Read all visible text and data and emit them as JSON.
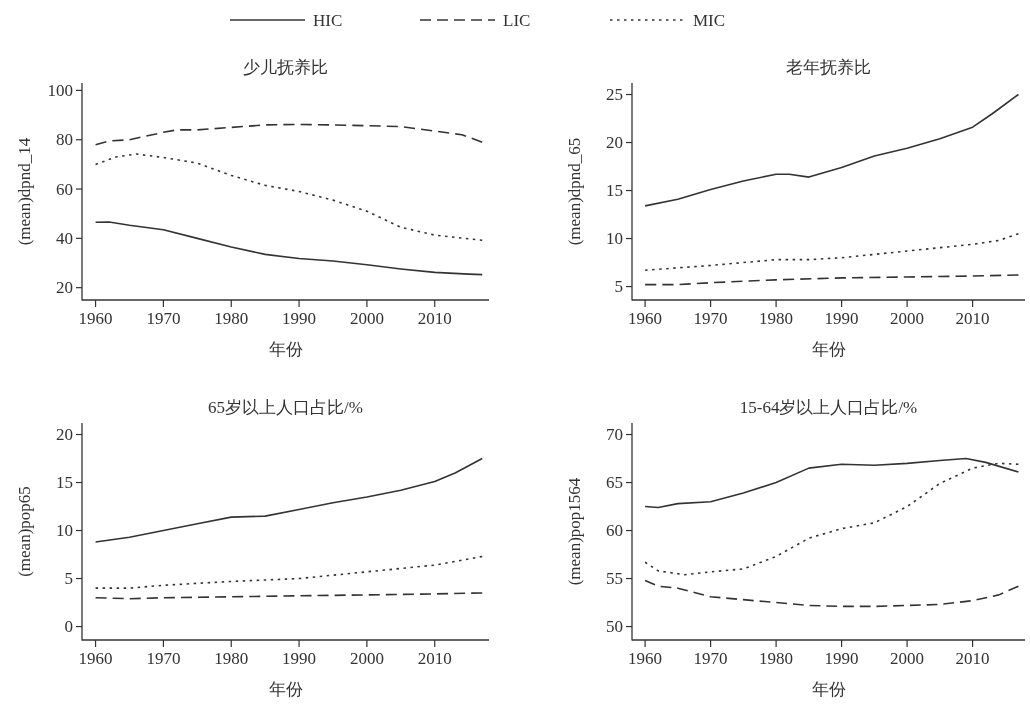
{
  "chart_data": [
    {
      "type": "line",
      "title": "少儿抚养比",
      "xlabel": "年份",
      "ylabel": "(mean)dpnd_14",
      "xlim": [
        1958,
        2018
      ],
      "xticks": [
        1960,
        1970,
        1980,
        1990,
        2000,
        2010
      ],
      "ylim": [
        15,
        103
      ],
      "yticks": [
        20,
        40,
        60,
        80,
        100
      ],
      "grid": false,
      "legend": "top",
      "series": [
        {
          "name": "HIC",
          "color": "#333333",
          "line_style": "solid",
          "x": [
            1960,
            1962,
            1965,
            1970,
            1975,
            1980,
            1985,
            1990,
            1995,
            2000,
            2005,
            2010,
            2015,
            2017
          ],
          "values": [
            46.5,
            46.6,
            45.3,
            43.5,
            40,
            36.5,
            33.5,
            31.8,
            30.8,
            29.3,
            27.6,
            26.2,
            25.5,
            25.3
          ]
        },
        {
          "name": "LIC",
          "color": "#333333",
          "line_style": "dashed",
          "x": [
            1960,
            1962,
            1965,
            1970,
            1972,
            1975,
            1980,
            1985,
            1990,
            1995,
            2000,
            2005,
            2010,
            2014,
            2017
          ],
          "values": [
            78,
            79.5,
            80,
            83,
            84,
            84,
            85,
            86,
            86.2,
            86,
            85.7,
            85.3,
            83.5,
            82,
            79
          ]
        },
        {
          "name": "MIC",
          "color": "#333333",
          "line_style": "dotted",
          "x": [
            1960,
            1963,
            1966,
            1970,
            1975,
            1980,
            1985,
            1990,
            1995,
            2000,
            2005,
            2010,
            2015,
            2017
          ],
          "values": [
            70,
            73,
            74.2,
            72.8,
            70.5,
            65.5,
            61.5,
            59,
            55.5,
            51,
            44.5,
            41.3,
            39.8,
            39.2
          ]
        }
      ]
    },
    {
      "type": "line",
      "title": "老年抚养比",
      "xlabel": "年份",
      "ylabel": "(mean)dpnd_65",
      "xlim": [
        1958,
        2018
      ],
      "xticks": [
        1960,
        1970,
        1980,
        1990,
        2000,
        2010
      ],
      "ylim": [
        3.6,
        26.2
      ],
      "yticks": [
        5,
        10,
        15,
        20,
        25
      ],
      "grid": false,
      "series": [
        {
          "color": "#333333",
          "line_style": "solid",
          "x": [
            1960,
            1965,
            1970,
            1975,
            1980,
            1982,
            1985,
            1990,
            1995,
            2000,
            2005,
            2010,
            2013,
            2017
          ],
          "values": [
            13.4,
            14.1,
            15.1,
            16,
            16.7,
            16.7,
            16.4,
            17.4,
            18.6,
            19.4,
            20.4,
            21.6,
            23,
            25
          ]
        },
        {
          "color": "#333333",
          "line_style": "dashed",
          "x": [
            1960,
            1965,
            1970,
            1980,
            1990,
            2000,
            2010,
            2017
          ],
          "values": [
            5.2,
            5.2,
            5.4,
            5.7,
            5.9,
            6.0,
            6.1,
            6.2
          ]
        },
        {
          "color": "#333333",
          "line_style": "dotted",
          "x": [
            1960,
            1970,
            1980,
            1985,
            1990,
            2000,
            2010,
            2014,
            2017
          ],
          "values": [
            6.7,
            7.2,
            7.8,
            7.8,
            8.0,
            8.7,
            9.4,
            9.8,
            10.5
          ]
        }
      ]
    },
    {
      "type": "line",
      "title": "65岁以上人口占比/%",
      "xlabel": "年份",
      "ylabel": "(mean)pop65",
      "xlim": [
        1958,
        2018
      ],
      "xticks": [
        1960,
        1970,
        1980,
        1990,
        2000,
        2010
      ],
      "ylim": [
        -1.4,
        21.2
      ],
      "yticks": [
        0,
        5,
        10,
        15,
        20
      ],
      "grid": false,
      "series": [
        {
          "color": "#333333",
          "line_style": "solid",
          "x": [
            1960,
            1965,
            1970,
            1975,
            1980,
            1985,
            1990,
            1995,
            2000,
            2005,
            2010,
            2013,
            2017
          ],
          "values": [
            8.8,
            9.3,
            10,
            10.7,
            11.4,
            11.5,
            12.2,
            12.9,
            13.5,
            14.2,
            15.1,
            16,
            17.5
          ]
        },
        {
          "color": "#333333",
          "line_style": "dashed",
          "x": [
            1960,
            1965,
            1970,
            1980,
            1990,
            2000,
            2010,
            2017
          ],
          "values": [
            3.0,
            2.9,
            3.0,
            3.1,
            3.2,
            3.3,
            3.4,
            3.5
          ]
        },
        {
          "color": "#333333",
          "line_style": "dotted",
          "x": [
            1960,
            1965,
            1970,
            1980,
            1990,
            2000,
            2010,
            2017
          ],
          "values": [
            4.0,
            4.0,
            4.3,
            4.7,
            5.0,
            5.7,
            6.4,
            7.3
          ]
        }
      ]
    },
    {
      "type": "line",
      "title": "15-64岁以上人口占比/%",
      "xlabel": "年份",
      "ylabel": "(mean)pop1564",
      "xlim": [
        1958,
        2018
      ],
      "xticks": [
        1960,
        1970,
        1980,
        1990,
        2000,
        2010
      ],
      "ylim": [
        48.6,
        71.2
      ],
      "yticks": [
        50,
        55,
        60,
        65,
        70
      ],
      "grid": false,
      "series": [
        {
          "color": "#333333",
          "line_style": "solid",
          "x": [
            1960,
            1962,
            1965,
            1970,
            1975,
            1980,
            1985,
            1990,
            1995,
            2000,
            2005,
            2009,
            2012,
            2017
          ],
          "values": [
            62.5,
            62.4,
            62.8,
            63.0,
            63.9,
            65,
            66.5,
            66.9,
            66.8,
            67.0,
            67.3,
            67.5,
            67.1,
            66.1
          ]
        },
        {
          "color": "#333333",
          "line_style": "dashed",
          "x": [
            1960,
            1962,
            1965,
            1970,
            1975,
            1980,
            1985,
            1990,
            1995,
            2000,
            2005,
            2010,
            2014,
            2017
          ],
          "values": [
            54.8,
            54.2,
            54,
            53.1,
            52.8,
            52.5,
            52.2,
            52.1,
            52.1,
            52.2,
            52.3,
            52.7,
            53.3,
            54.2
          ]
        },
        {
          "color": "#333333",
          "line_style": "dotted",
          "x": [
            1960,
            1962,
            1966,
            1970,
            1975,
            1980,
            1985,
            1990,
            1995,
            2000,
            2005,
            2010,
            2014,
            2017
          ],
          "values": [
            56.7,
            55.8,
            55.4,
            55.7,
            56,
            57.3,
            59.2,
            60.2,
            60.8,
            62.5,
            64.9,
            66.5,
            67,
            66.9
          ]
        }
      ]
    }
  ]
}
